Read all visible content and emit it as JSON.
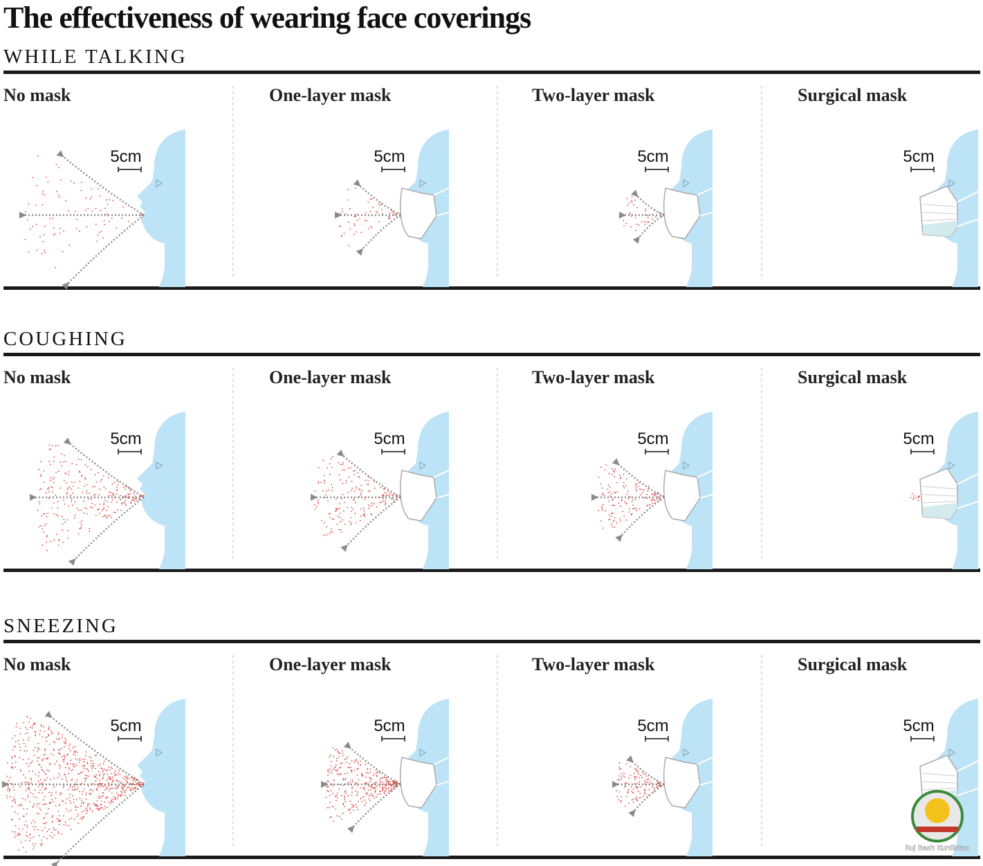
{
  "title": "The effectiveness of wearing face coverings",
  "sections": [
    {
      "title": "WHILE TALKING",
      "panels": [
        {
          "label": "No mask",
          "scale": "5cm"
        },
        {
          "label": "One-layer mask",
          "scale": "5cm"
        },
        {
          "label": "Two-layer mask",
          "scale": "5cm"
        },
        {
          "label": "Surgical mask",
          "scale": "5cm"
        }
      ]
    },
    {
      "title": "COUGHING",
      "panels": [
        {
          "label": "No mask",
          "scale": "5cm"
        },
        {
          "label": "One-layer mask",
          "scale": "5cm"
        },
        {
          "label": "Two-layer mask",
          "scale": "5cm"
        },
        {
          "label": "Surgical mask",
          "scale": "5cm"
        }
      ]
    },
    {
      "title": "SNEEZING",
      "panels": [
        {
          "label": "No mask",
          "scale": "5cm"
        },
        {
          "label": "One-layer mask",
          "scale": "5cm"
        },
        {
          "label": "Two-layer mask",
          "scale": "5cm"
        },
        {
          "label": "Surgical mask",
          "scale": "5cm"
        }
      ]
    }
  ],
  "watermark": "Roj Bash Kurdistan"
}
